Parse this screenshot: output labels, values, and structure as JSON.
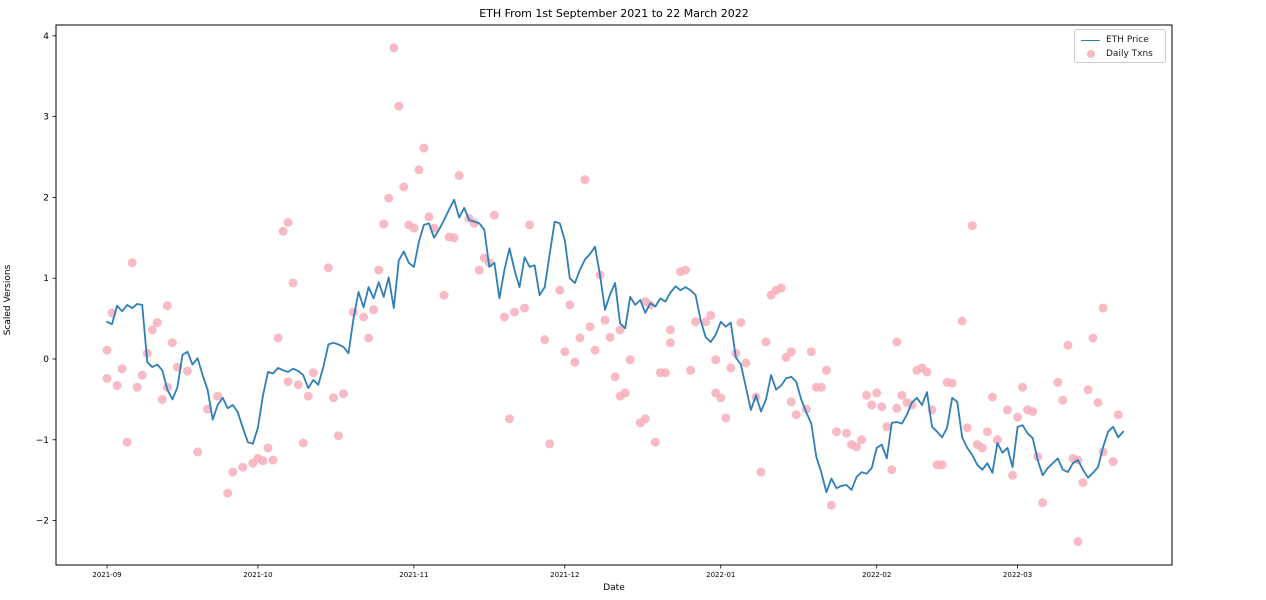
{
  "title": "ETH From 1st September 2021 to 22 March 2022",
  "axes": {
    "xlabel": "Date",
    "ylabel": "Scaled Versions",
    "xticks": [
      {
        "label": "2021-09",
        "day": 0
      },
      {
        "label": "2021-10",
        "day": 30
      },
      {
        "label": "2021-11",
        "day": 61
      },
      {
        "label": "2021-12",
        "day": 91
      },
      {
        "label": "2022-01",
        "day": 122
      },
      {
        "label": "2022-02",
        "day": 153
      },
      {
        "label": "2022-03",
        "day": 181
      }
    ],
    "yticks": [
      {
        "label": "4",
        "value": 4
      },
      {
        "label": "3",
        "value": 3
      },
      {
        "label": "2",
        "value": 2
      },
      {
        "label": "1",
        "value": 1
      },
      {
        "label": "0",
        "value": 0
      },
      {
        "label": "−1",
        "value": -1
      },
      {
        "label": "−2",
        "value": -2
      }
    ]
  },
  "legend": {
    "items": [
      {
        "label": "ETH Price",
        "type": "line",
        "color": "#2e7eb8"
      },
      {
        "label": "Daily Txns",
        "type": "dot",
        "color": "#f7afbc"
      }
    ]
  },
  "chart_data": {
    "type": "line+scatter",
    "title": "ETH From 1st September 2021 to 22 March 2022",
    "xlabel": "Date",
    "ylabel": "Scaled Versions",
    "x_unit": "days since 2021-09-01",
    "x0_date": "2021-09-01",
    "xlim_days": [
      -10.14,
      211.7
    ],
    "ylim": [
      -2.55,
      4.134
    ],
    "grid": false,
    "legend_position": "upper right",
    "series": [
      {
        "name": "ETH Price",
        "type": "line",
        "color": "#2e7eb8",
        "x_step": 1,
        "y": [
          0.46,
          0.43,
          0.66,
          0.59,
          0.67,
          0.63,
          0.68,
          0.67,
          -0.04,
          -0.1,
          -0.07,
          -0.14,
          -0.38,
          -0.5,
          -0.35,
          0.05,
          0.09,
          -0.07,
          0.01,
          -0.2,
          -0.38,
          -0.75,
          -0.57,
          -0.48,
          -0.61,
          -0.57,
          -0.66,
          -0.85,
          -1.03,
          -1.05,
          -0.85,
          -0.45,
          -0.16,
          -0.18,
          -0.11,
          -0.14,
          -0.16,
          -0.12,
          -0.15,
          -0.2,
          -0.36,
          -0.26,
          -0.32,
          -0.1,
          0.18,
          0.2,
          0.18,
          0.15,
          0.07,
          0.5,
          0.83,
          0.64,
          0.89,
          0.75,
          0.95,
          0.77,
          1.01,
          0.63,
          1.22,
          1.33,
          1.19,
          1.14,
          1.45,
          1.66,
          1.68,
          1.5,
          1.6,
          1.72,
          1.85,
          1.97,
          1.75,
          1.87,
          1.72,
          1.7,
          1.68,
          1.6,
          1.14,
          1.19,
          0.75,
          1.1,
          1.37,
          1.1,
          0.89,
          1.26,
          1.14,
          1.16,
          0.79,
          0.89,
          1.3,
          1.7,
          1.68,
          1.47,
          1.0,
          0.94,
          1.1,
          1.23,
          1.3,
          1.39,
          1.04,
          0.61,
          0.8,
          0.94,
          0.44,
          0.38,
          0.77,
          0.67,
          0.73,
          0.57,
          0.69,
          0.65,
          0.75,
          0.71,
          0.82,
          0.9,
          0.85,
          0.89,
          0.85,
          0.79,
          0.48,
          0.27,
          0.21,
          0.3,
          0.46,
          0.4,
          0.45,
          0.02,
          -0.07,
          -0.35,
          -0.63,
          -0.45,
          -0.65,
          -0.5,
          -0.2,
          -0.38,
          -0.33,
          -0.24,
          -0.22,
          -0.28,
          -0.5,
          -0.66,
          -0.8,
          -1.21,
          -1.41,
          -1.65,
          -1.48,
          -1.6,
          -1.57,
          -1.56,
          -1.62,
          -1.46,
          -1.4,
          -1.42,
          -1.35,
          -1.1,
          -1.06,
          -1.23,
          -0.79,
          -0.78,
          -0.8,
          -0.69,
          -0.54,
          -0.48,
          -0.57,
          -0.41,
          -0.84,
          -0.9,
          -0.97,
          -0.85,
          -0.48,
          -0.53,
          -0.97,
          -1.1,
          -1.19,
          -1.31,
          -1.37,
          -1.29,
          -1.41,
          -1.04,
          -1.16,
          -1.1,
          -1.34,
          -0.84,
          -0.82,
          -0.92,
          -0.98,
          -1.25,
          -1.44,
          -1.35,
          -1.29,
          -1.23,
          -1.37,
          -1.4,
          -1.29,
          -1.25,
          -1.37,
          -1.47,
          -1.41,
          -1.34,
          -1.09,
          -0.9,
          -0.84,
          -0.97,
          -0.9
        ]
      },
      {
        "name": "Daily Txns",
        "type": "scatter",
        "color": "#f7afbc",
        "opacity": 0.85,
        "points": [
          [
            0,
            0.11
          ],
          [
            0,
            -0.24
          ],
          [
            1,
            0.57
          ],
          [
            2,
            -0.33
          ],
          [
            3,
            -0.12
          ],
          [
            4,
            -1.03
          ],
          [
            5,
            1.19
          ],
          [
            6,
            -0.35
          ],
          [
            7,
            -0.2
          ],
          [
            8,
            0.07
          ],
          [
            9,
            0.36
          ],
          [
            10,
            0.45
          ],
          [
            11,
            -0.5
          ],
          [
            12,
            0.66
          ],
          [
            12,
            -0.35
          ],
          [
            13,
            0.2
          ],
          [
            14,
            -0.1
          ],
          [
            16,
            -0.15
          ],
          [
            18,
            -1.15
          ],
          [
            20,
            -0.62
          ],
          [
            22,
            -0.46
          ],
          [
            24,
            -1.66
          ],
          [
            25,
            -1.4
          ],
          [
            27,
            -1.34
          ],
          [
            29,
            -1.29
          ],
          [
            30,
            -1.23
          ],
          [
            31,
            -1.26
          ],
          [
            32,
            -1.1
          ],
          [
            33,
            -1.25
          ],
          [
            34,
            0.26
          ],
          [
            35,
            1.58
          ],
          [
            36,
            1.69
          ],
          [
            36,
            -0.28
          ],
          [
            37,
            0.94
          ],
          [
            38,
            -0.32
          ],
          [
            39,
            -1.04
          ],
          [
            40,
            -0.46
          ],
          [
            41,
            -0.17
          ],
          [
            44,
            1.13
          ],
          [
            45,
            -0.48
          ],
          [
            46,
            -0.95
          ],
          [
            47,
            -0.43
          ],
          [
            49,
            0.58
          ],
          [
            51,
            0.52
          ],
          [
            52,
            0.26
          ],
          [
            53,
            0.61
          ],
          [
            54,
            1.1
          ],
          [
            55,
            1.67
          ],
          [
            56,
            1.99
          ],
          [
            57,
            3.85
          ],
          [
            58,
            3.13
          ],
          [
            59,
            2.13
          ],
          [
            60,
            1.66
          ],
          [
            61,
            1.62
          ],
          [
            62,
            2.34
          ],
          [
            63,
            2.61
          ],
          [
            64,
            1.76
          ],
          [
            65,
            1.62
          ],
          [
            67,
            0.79
          ],
          [
            68,
            1.51
          ],
          [
            69,
            1.5
          ],
          [
            70,
            2.27
          ],
          [
            72,
            1.74
          ],
          [
            73,
            1.68
          ],
          [
            74,
            1.1
          ],
          [
            75,
            1.25
          ],
          [
            76,
            1.19
          ],
          [
            77,
            1.78
          ],
          [
            79,
            0.52
          ],
          [
            80,
            -0.74
          ],
          [
            81,
            0.58
          ],
          [
            83,
            0.63
          ],
          [
            84,
            1.66
          ],
          [
            87,
            0.24
          ],
          [
            88,
            -1.05
          ],
          [
            90,
            0.85
          ],
          [
            91,
            0.09
          ],
          [
            92,
            0.67
          ],
          [
            93,
            -0.04
          ],
          [
            94,
            0.26
          ],
          [
            95,
            2.22
          ],
          [
            96,
            0.4
          ],
          [
            97,
            0.11
          ],
          [
            98,
            1.04
          ],
          [
            99,
            0.48
          ],
          [
            100,
            0.27
          ],
          [
            101,
            -0.22
          ],
          [
            102,
            -0.46
          ],
          [
            102,
            0.36
          ],
          [
            103,
            -0.42
          ],
          [
            104,
            -0.01
          ],
          [
            106,
            -0.79
          ],
          [
            107,
            0.71
          ],
          [
            107,
            -0.74
          ],
          [
            108,
            0.67
          ],
          [
            109,
            -1.03
          ],
          [
            110,
            -0.17
          ],
          [
            111,
            -0.17
          ],
          [
            112,
            0.36
          ],
          [
            112,
            0.2
          ],
          [
            114,
            1.08
          ],
          [
            115,
            1.1
          ],
          [
            116,
            -0.14
          ],
          [
            117,
            0.46
          ],
          [
            119,
            0.46
          ],
          [
            120,
            0.54
          ],
          [
            121,
            -0.01
          ],
          [
            121,
            -0.42
          ],
          [
            122,
            -0.48
          ],
          [
            123,
            -0.73
          ],
          [
            124,
            -0.11
          ],
          [
            125,
            0.07
          ],
          [
            126,
            0.45
          ],
          [
            127,
            -0.05
          ],
          [
            129,
            -0.47
          ],
          [
            130,
            -1.4
          ],
          [
            131,
            0.21
          ],
          [
            132,
            0.79
          ],
          [
            133,
            0.85
          ],
          [
            134,
            0.88
          ],
          [
            135,
            0.02
          ],
          [
            136,
            0.09
          ],
          [
            136,
            -0.53
          ],
          [
            137,
            -0.69
          ],
          [
            139,
            -0.62
          ],
          [
            140,
            0.09
          ],
          [
            141,
            -0.35
          ],
          [
            142,
            -0.35
          ],
          [
            143,
            -0.14
          ],
          [
            144,
            -1.81
          ],
          [
            145,
            -0.9
          ],
          [
            147,
            -0.92
          ],
          [
            148,
            -1.06
          ],
          [
            149,
            -1.09
          ],
          [
            150,
            -1.0
          ],
          [
            151,
            -0.45
          ],
          [
            152,
            -0.57
          ],
          [
            153,
            -0.42
          ],
          [
            154,
            -0.59
          ],
          [
            155,
            -0.84
          ],
          [
            156,
            -1.37
          ],
          [
            157,
            0.21
          ],
          [
            157,
            -0.61
          ],
          [
            158,
            -0.45
          ],
          [
            159,
            -0.54
          ],
          [
            160,
            -0.57
          ],
          [
            161,
            -0.14
          ],
          [
            162,
            -0.11
          ],
          [
            163,
            -0.16
          ],
          [
            164,
            -0.63
          ],
          [
            165,
            -1.31
          ],
          [
            166,
            -1.31
          ],
          [
            167,
            -0.29
          ],
          [
            168,
            -0.3
          ],
          [
            170,
            0.47
          ],
          [
            171,
            -0.85
          ],
          [
            172,
            1.65
          ],
          [
            173,
            -1.06
          ],
          [
            174,
            -1.1
          ],
          [
            175,
            -0.9
          ],
          [
            176,
            -0.47
          ],
          [
            177,
            -1.0
          ],
          [
            179,
            -0.63
          ],
          [
            180,
            -1.44
          ],
          [
            181,
            -0.72
          ],
          [
            182,
            -0.35
          ],
          [
            183,
            -0.63
          ],
          [
            184,
            -0.65
          ],
          [
            185,
            -1.21
          ],
          [
            186,
            -1.78
          ],
          [
            189,
            -0.29
          ],
          [
            190,
            -0.51
          ],
          [
            191,
            0.17
          ],
          [
            192,
            -1.23
          ],
          [
            193,
            -1.25
          ],
          [
            193,
            -2.26
          ],
          [
            194,
            -1.53
          ],
          [
            195,
            -0.38
          ],
          [
            196,
            0.26
          ],
          [
            197,
            -0.54
          ],
          [
            198,
            0.63
          ],
          [
            198,
            -1.15
          ],
          [
            200,
            -1.27
          ],
          [
            201,
            -0.69
          ]
        ]
      }
    ]
  }
}
